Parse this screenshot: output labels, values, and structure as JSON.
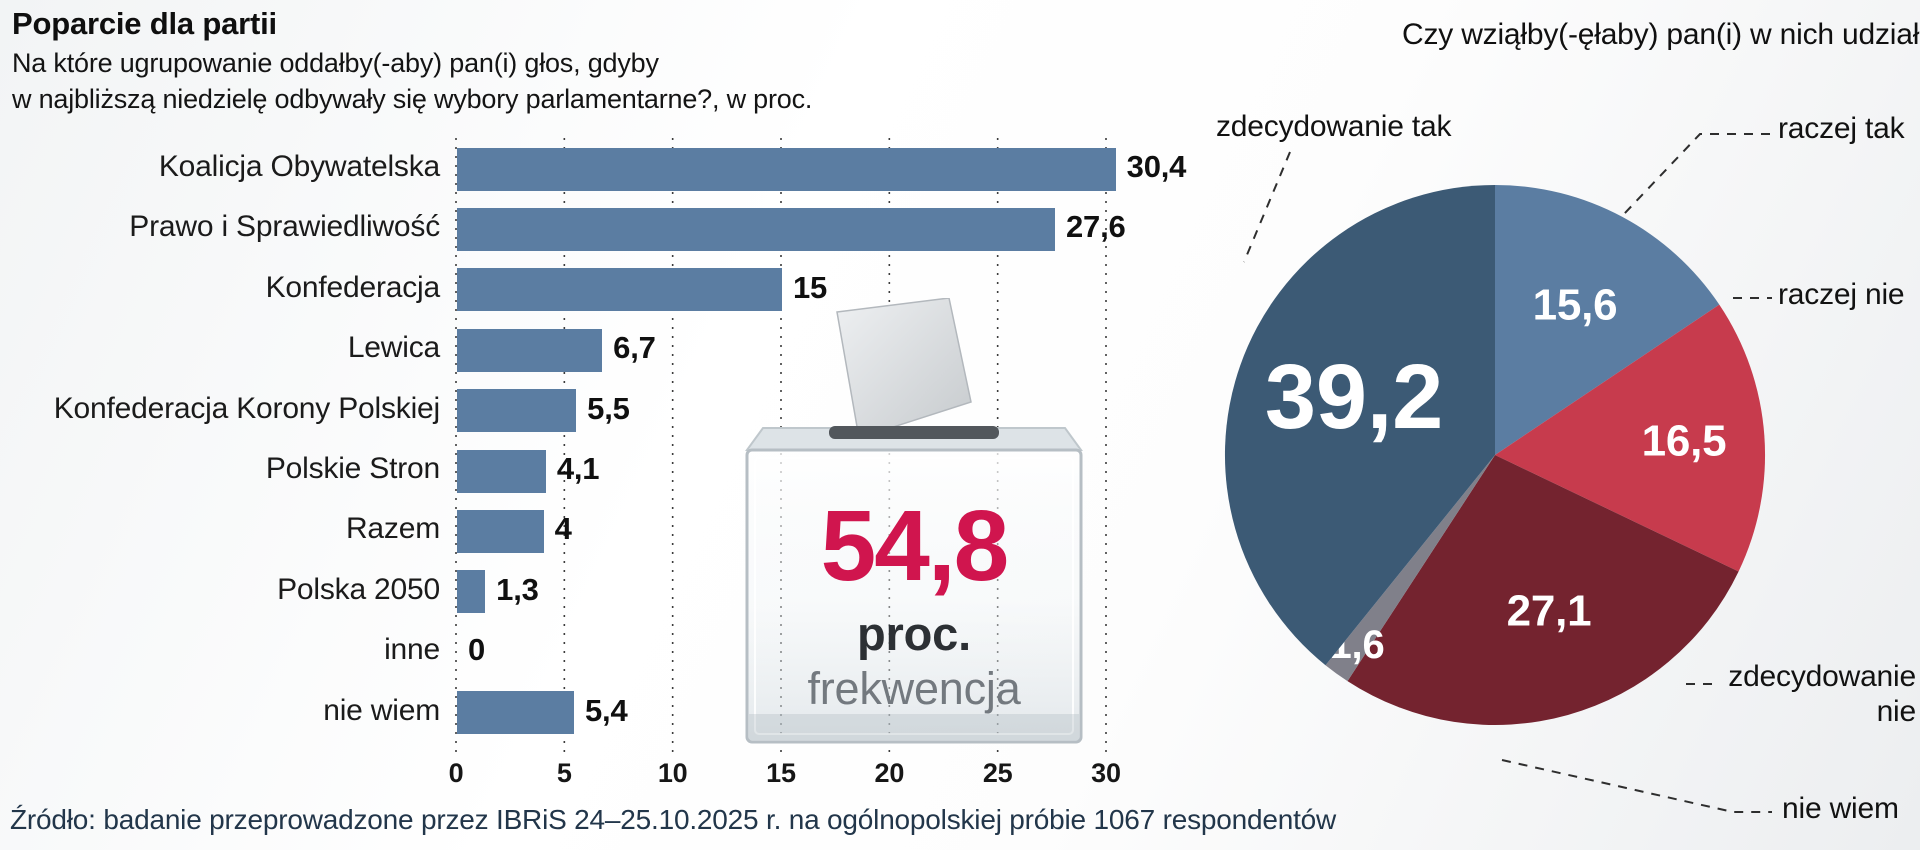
{
  "header": {
    "title": "Poparcie dla partii",
    "subtitle_line1": "Na które ugrupowanie oddałby(-aby) pan(i) głos, gdyby",
    "subtitle_line2": "w najbliższą niedzielę odbywały się wybory parlamentarne?, w proc."
  },
  "turnout": {
    "value": "54,8",
    "unit": "proc.",
    "label": "frekwencja"
  },
  "footer": {
    "source": "Źródło: badanie przeprowadzone przez IBRiS  24–25.10.2025 r. na ogólnopolskiej próbie 1067 respondentów"
  },
  "colors": {
    "bar": "#5b7da2",
    "accent": "#d0154e",
    "grid": "#3c3c3c"
  },
  "chart_data": [
    {
      "type": "bar",
      "orientation": "horizontal",
      "title": "Poparcie dla partii",
      "question": "Na które ugrupowanie oddałby(-aby) pan(i) głos, gdyby w najbliższą niedzielę odbywały się wybory parlamentarne?, w proc.",
      "categories": [
        "Koalicja Obywatelska",
        "Prawo i Sprawiedliwość",
        "Konfederacja",
        "Lewica",
        "Konfederacja Korony Polskiej",
        "Polskie Stron",
        "Razem",
        "Polska 2050",
        "inne",
        "nie wiem"
      ],
      "values": [
        30.4,
        27.6,
        15,
        6.7,
        5.5,
        4.1,
        4,
        1.3,
        0,
        5.4
      ],
      "value_labels": [
        "30,4",
        "27,6",
        "15",
        "6,7",
        "5,5",
        "4,1",
        "4",
        "1,3",
        "0",
        "5,4"
      ],
      "xlim": [
        0,
        30
      ],
      "xticks": [
        0,
        5,
        10,
        15,
        20,
        25,
        30
      ],
      "grid": "dashed-vertical",
      "bar_color": "#5b7da2"
    },
    {
      "type": "pie",
      "title": "Czy wziąłby(-ęłaby) pan(i) w nich udział",
      "labels": [
        "raczej tak",
        "raczej nie",
        "zdecydowanie nie",
        "nie wiem",
        "zdecydowanie tak"
      ],
      "values": [
        15.6,
        16.5,
        27.1,
        1.6,
        39.2
      ],
      "value_labels": [
        "15,6",
        "16,5",
        "27,1",
        "1,6",
        "39,2"
      ],
      "colors": [
        "#5b7da2",
        "#c73b4d",
        "#74232f",
        "#80808a",
        "#3c5a75"
      ],
      "start_angle": "top",
      "direction": "clockwise"
    }
  ]
}
